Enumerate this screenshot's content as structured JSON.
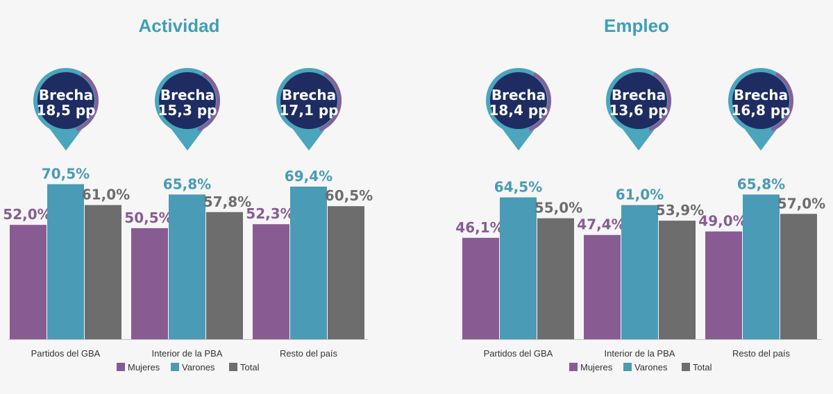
{
  "colors": {
    "mujeres": "#885c93",
    "varones": "#4a9bb6",
    "total": "#6d6d6d",
    "title": "#3f9fb7",
    "pin_fill": "#1e2c62",
    "pin_ring_teal": "#4aa5bd",
    "pin_ring_purple": "#86609a",
    "axis": "#bdbdbd"
  },
  "chart_data": [
    {
      "type": "bar",
      "title": "Actividad",
      "categories": [
        "Partidos del GBA",
        "Interior de la PBA",
        "Resto del país"
      ],
      "series": [
        {
          "name": "Mujeres",
          "values": [
            52.0,
            50.5,
            52.3
          ],
          "labels": [
            "52,0%",
            "50,5%",
            "52,3%"
          ]
        },
        {
          "name": "Varones",
          "values": [
            70.5,
            65.8,
            69.4
          ],
          "labels": [
            "70,5%",
            "65,8%",
            "69,4%"
          ]
        },
        {
          "name": "Total",
          "values": [
            61.0,
            57.8,
            60.5
          ],
          "labels": [
            "61,0%",
            "57,8%",
            "60,5%"
          ]
        }
      ],
      "gaps": [
        {
          "line1": "Brecha",
          "line2": "18,5 pp"
        },
        {
          "line1": "Brecha",
          "line2": "15,3 pp"
        },
        {
          "line1": "Brecha",
          "line2": "17,1 pp"
        }
      ],
      "ylim": [
        0,
        100
      ]
    },
    {
      "type": "bar",
      "title": "Empleo",
      "categories": [
        "Partidos del GBA",
        "Interior de la PBA",
        "Resto del país"
      ],
      "series": [
        {
          "name": "Mujeres",
          "values": [
            46.1,
            47.4,
            49.0
          ],
          "labels": [
            "46,1%",
            "47,4%",
            "49,0%"
          ]
        },
        {
          "name": "Varones",
          "values": [
            64.5,
            61.0,
            65.8
          ],
          "labels": [
            "64,5%",
            "61,0%",
            "65,8%"
          ]
        },
        {
          "name": "Total",
          "values": [
            55.0,
            53.9,
            57.0
          ],
          "labels": [
            "55,0%",
            "53,9%",
            "57,0%"
          ]
        }
      ],
      "gaps": [
        {
          "line1": "Brecha",
          "line2": "18,4 pp"
        },
        {
          "line1": "Brecha",
          "line2": "13,6 pp"
        },
        {
          "line1": "Brecha",
          "line2": "16,8 pp"
        }
      ],
      "ylim": [
        0,
        100
      ]
    }
  ]
}
